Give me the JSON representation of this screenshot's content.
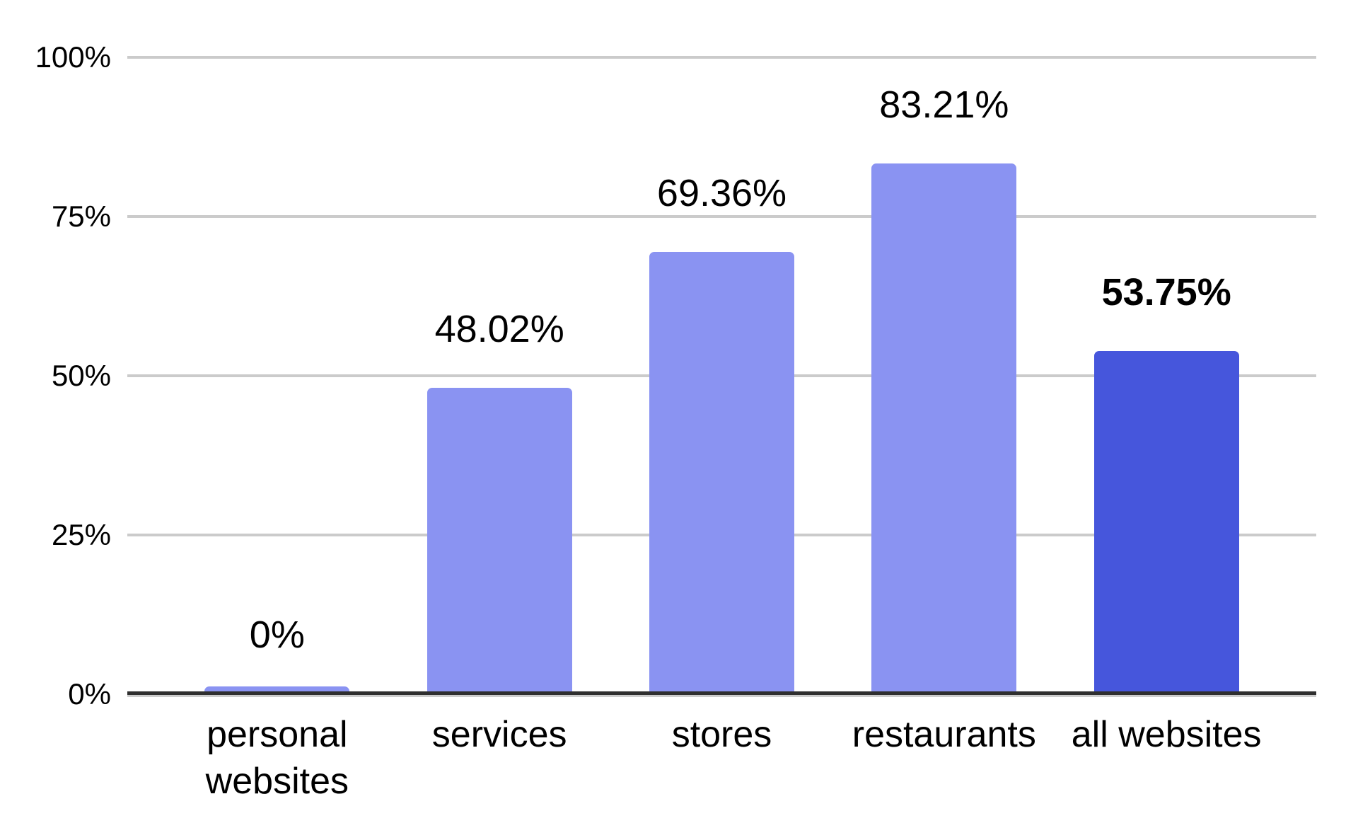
{
  "chart_data": {
    "type": "bar",
    "title": "",
    "xlabel": "",
    "ylabel": "",
    "categories": [
      "personal websites",
      "services",
      "stores",
      "restaurants",
      "all websites"
    ],
    "values": [
      0,
      48.02,
      69.36,
      83.21,
      53.75
    ],
    "value_labels": [
      "0%",
      "48.02%",
      "69.36%",
      "83.21%",
      "53.75%"
    ],
    "emphasized_index": 4,
    "emphasized_value_label_bold": true,
    "ylim": [
      0,
      100
    ],
    "ytick_values": [
      0,
      25,
      50,
      75,
      100
    ],
    "ytick_labels": [
      "0%",
      "25%",
      "50%",
      "75%",
      "100%"
    ],
    "grid": true,
    "legend": "none",
    "colors": {
      "bar": "#8A93F2",
      "bar_emphasized": "#4656DC",
      "gridline": "#CBCBCB",
      "axis_line": "#2F2F2F",
      "axis_shadow": "#CCCCCC",
      "label_text": "#000000",
      "background": "#FFFFFF"
    }
  }
}
